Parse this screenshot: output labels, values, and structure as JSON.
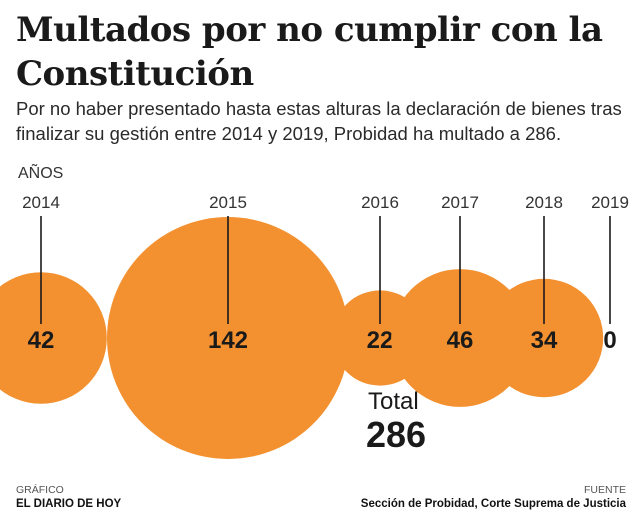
{
  "header": {
    "title": "Multados por no cumplir con la Constitución",
    "subtitle": "Por no haber presentado hasta estas alturas la declaración de bienes tras finalizar su gestión entre 2014 y 2019, Probidad ha multado a 286."
  },
  "axis_label": "AÑOS",
  "total": {
    "label": "Total",
    "value": "286"
  },
  "footer": {
    "left_key": "GRÁFICO",
    "left_value": "EL DIARIO DE HOY",
    "right_key": "FUENTE",
    "right_value": "Sección de Probidad, Corte Suprema de Justicia"
  },
  "colors": {
    "bubble": "#F39130",
    "line": "#1a1a1a",
    "text": "#1a1a1a"
  },
  "chart_data": {
    "type": "bubble",
    "title": "Multados por no cumplir con la Constitución",
    "categories": [
      "2014",
      "2015",
      "2016",
      "2017",
      "2018",
      "2019"
    ],
    "values": [
      42,
      142,
      22,
      46,
      34,
      0
    ],
    "series": [
      {
        "values": [
          42,
          142,
          22,
          46,
          34,
          0
        ]
      }
    ],
    "total": 286
  }
}
